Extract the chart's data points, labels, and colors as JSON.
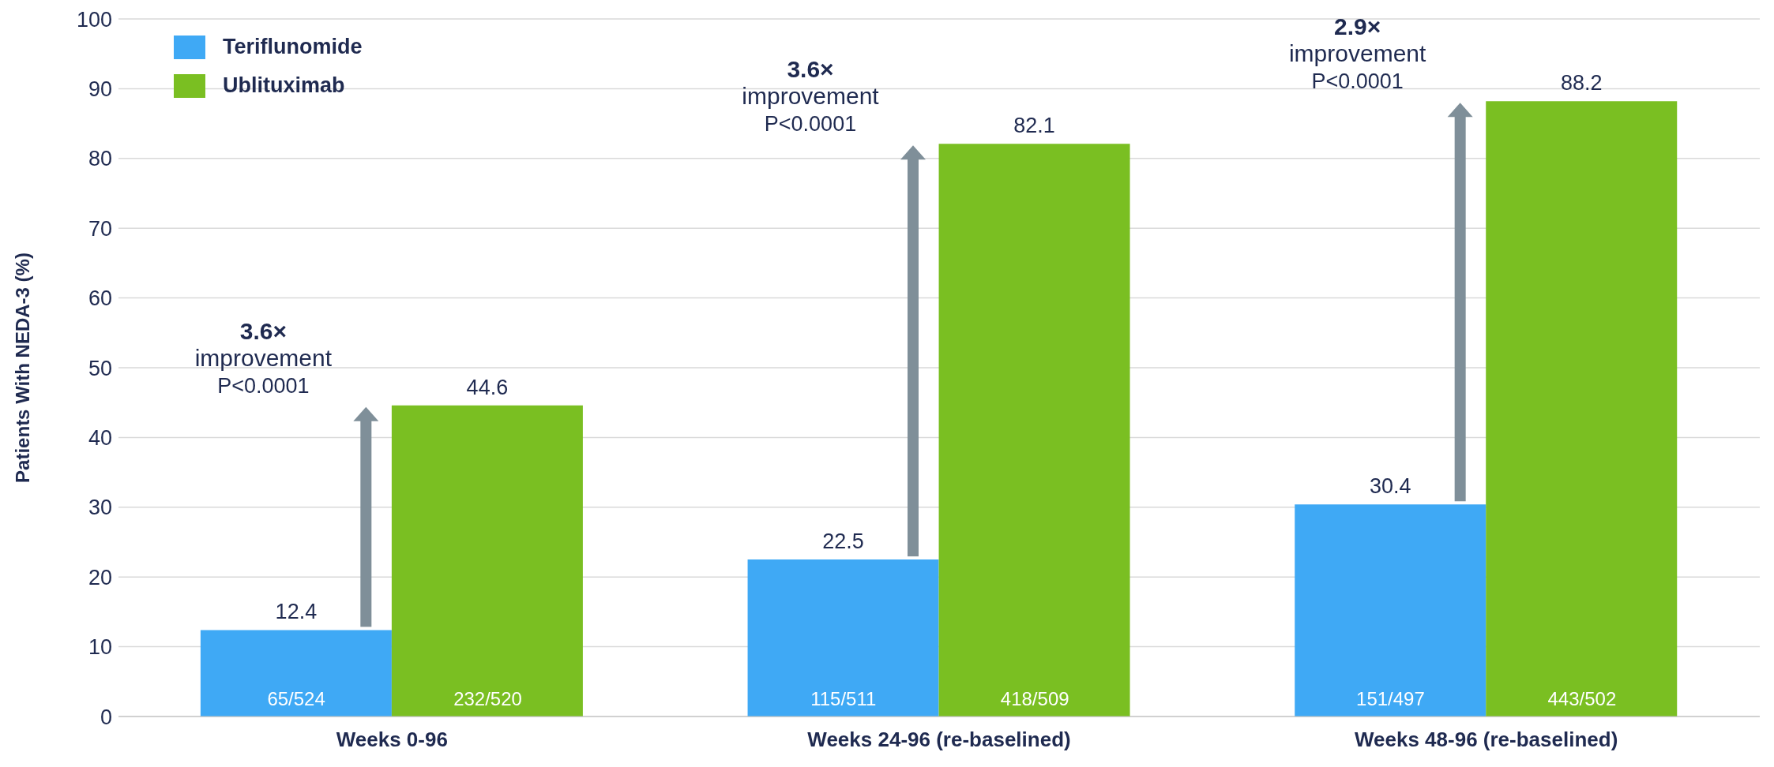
{
  "chart_data": {
    "type": "bar",
    "ylabel": "Patients With NEDA-3 (%)",
    "categories": [
      "Weeks 0-96",
      "Weeks 24-96 (re-baselined)",
      "Weeks 48-96 (re-baselined)"
    ],
    "series": [
      {
        "name": "Teriflunomide",
        "color": "#3fa9f5",
        "values": [
          12.4,
          22.5,
          30.4
        ]
      },
      {
        "name": "Ublituximab",
        "color": "#7abf22",
        "values": [
          44.6,
          82.1,
          88.2
        ]
      }
    ],
    "ylim": [
      0,
      100
    ],
    "yticks": [
      0,
      10,
      20,
      30,
      40,
      50,
      60,
      70,
      80,
      90,
      100
    ],
    "grid": "y",
    "legend": "top left",
    "data_labels": true,
    "annotations": [
      {
        "text": "3.6×\nimprovement\nP<0.0001",
        "x": "Weeks 0-96",
        "y": 44.6
      },
      {
        "text": "3.6×\nimprovement\nP<0.0001",
        "x": "Weeks 24-96 (re-baselined)",
        "y": 82.1
      },
      {
        "text": "2.9×\nimprovement\nP<0.0001",
        "x": "Weeks 48-96 (re-baselined)",
        "y": 88.2
      },
      "65/524",
      "232/520",
      "115/511",
      "418/509",
      "151/497",
      "443/502"
    ]
  }
}
